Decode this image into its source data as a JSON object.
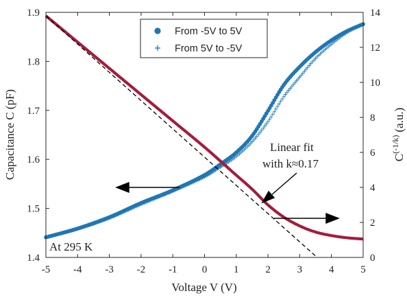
{
  "chart_data": {
    "type": "line",
    "title": "",
    "xlabel": "Voltage V (V)",
    "ylabel_left": "Capacitance C (pF)",
    "ylabel_right_base": "C",
    "ylabel_right_exp": "(-1/k)",
    "ylabel_right_unit": "(a.u.)",
    "xlim": [
      -5,
      5
    ],
    "ylim_left": [
      1.4,
      1.9
    ],
    "ylim_right": [
      0,
      14
    ],
    "x_ticks": [
      "-5",
      "-4",
      "-3",
      "-2",
      "-1",
      "0",
      "1",
      "2",
      "3",
      "4",
      "5"
    ],
    "y_left_ticks": [
      "1.4",
      "1.5",
      "1.6",
      "1.7",
      "1.8",
      "1.9"
    ],
    "y_right_ticks": [
      "0",
      "2",
      "4",
      "6",
      "8",
      "10",
      "12",
      "14"
    ],
    "grid": false,
    "legend_position": "top",
    "colors": {
      "capacitance": "#1f77b4",
      "transformed": "#a51c3c",
      "fit": "#000000",
      "axis": "#262626"
    },
    "series": [
      {
        "name": "From -5V to 5V",
        "axis": "left",
        "marker": "circle",
        "x": [
          -5,
          -4,
          -3,
          -2,
          -1,
          0,
          0.5,
          1,
          1.5,
          2,
          2.5,
          3,
          3.5,
          4,
          4.5,
          5
        ],
        "y": [
          1.441,
          1.459,
          1.482,
          1.511,
          1.537,
          1.568,
          1.59,
          1.614,
          1.648,
          1.699,
          1.752,
          1.789,
          1.819,
          1.843,
          1.862,
          1.876
        ]
      },
      {
        "name": "From 5V to -5V",
        "axis": "left",
        "marker": "plus",
        "x": [
          -5,
          -4,
          -3,
          -2,
          -1,
          0,
          0.5,
          1,
          1.5,
          2,
          2.5,
          3,
          3.5,
          4,
          4.5,
          5
        ],
        "y": [
          1.441,
          1.458,
          1.48,
          1.508,
          1.535,
          1.564,
          1.584,
          1.606,
          1.636,
          1.677,
          1.728,
          1.768,
          1.806,
          1.835,
          1.859,
          1.876
        ]
      },
      {
        "name": "",
        "axis": "right",
        "marker": "line",
        "x": [
          -5,
          -4,
          -3,
          -2,
          -1,
          0,
          1,
          1.5,
          2,
          2.5,
          3,
          3.5,
          4,
          4.5,
          5
        ],
        "y": [
          13.8,
          12.3,
          10.8,
          9.3,
          7.8,
          6.3,
          4.7,
          3.9,
          3.0,
          2.3,
          1.8,
          1.45,
          1.25,
          1.12,
          1.05
        ]
      }
    ],
    "fit_line": {
      "axis": "right",
      "x": [
        -5,
        3.55
      ],
      "y": [
        13.8,
        0
      ]
    },
    "annotations": {
      "fit_label_line1": "Linear fit",
      "fit_label_line2": "with k≈0.17",
      "temperature": "At 295 K"
    }
  }
}
